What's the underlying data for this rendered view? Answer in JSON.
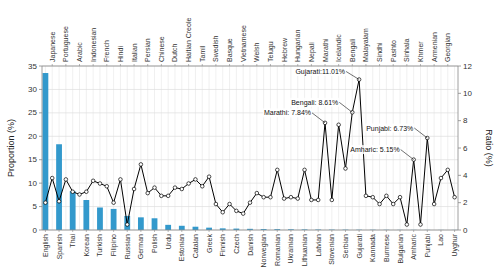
{
  "chart_data": {
    "type": "bar",
    "categories": [
      "English",
      "Japanese",
      "Spanish",
      "Portuguese",
      "Thai",
      "Arabic",
      "Korean",
      "Indonesian",
      "Turkish",
      "French",
      "Filipino",
      "Hindi",
      "Russian",
      "Italian",
      "German",
      "Persian",
      "Polish",
      "Chinese",
      "Urdu",
      "Dutch",
      "Estonian",
      "Haitian Creole",
      "Catalan",
      "Tamil",
      "Greek",
      "Swedish",
      "Finnish",
      "Basque",
      "Czech",
      "Vietnamese",
      "Danish",
      "Welsh",
      "Norwegian",
      "Telugu",
      "Romanian",
      "Hebrew",
      "Ukrainian",
      "Hungarian",
      "Lithuanian",
      "Nepali",
      "Latvian",
      "Marathi",
      "Slovenian",
      "Icelandic",
      "Serbian",
      "Bengali",
      "Gujarati",
      "Malayalam",
      "Kannada",
      "Sindhi",
      "Burmese",
      "Pashto",
      "Bulgarian",
      "Sinhala",
      "Amharic",
      "Khmer",
      "Punjabi",
      "Armenian",
      "Lao",
      "Georgian",
      "Uyghur"
    ],
    "series": [
      {
        "type": "bar",
        "color": "#3399cc",
        "values": [
          33.5,
          0.0,
          18.3,
          0.0,
          8.3,
          0.0,
          6.4,
          0.0,
          4.8,
          0.0,
          4.5,
          0.0,
          3.0,
          0.0,
          2.7,
          0.0,
          2.5,
          0.0,
          1.1,
          0.0,
          0.9,
          0.0,
          0.7,
          0.0,
          0.5,
          0.0,
          0.35,
          0.0,
          0.3,
          0.0,
          0.25,
          0.0,
          0.2,
          0.0,
          0.18,
          0.0,
          0.15,
          0.0,
          0.12,
          0.0,
          0.1,
          0.0,
          0.08,
          0.0,
          0.07,
          0.0,
          0.06,
          0.0,
          0.05,
          0.0,
          0.04,
          0.0,
          0.03,
          0.0,
          0.03,
          0.0,
          0.03,
          0.0,
          0.02,
          0.0,
          0.02
        ]
      },
      {
        "type": "line",
        "axis": "y2",
        "color": "black",
        "marker": "circle",
        "values": [
          2.0,
          3.8,
          2.1,
          3.7,
          2.8,
          2.6,
          2.8,
          3.6,
          3.4,
          3.2,
          2.0,
          3.7,
          0.4,
          3.0,
          4.8,
          2.7,
          3.1,
          2.5,
          2.5,
          3.1,
          3.0,
          3.4,
          3.7,
          3.2,
          3.9,
          1.9,
          1.3,
          1.9,
          1.4,
          1.2,
          2.0,
          2.7,
          2.4,
          2.4,
          4.4,
          2.3,
          2.4,
          2.3,
          4.4,
          2.2,
          2.2,
          7.84,
          2.2,
          7.7,
          4.5,
          8.61,
          11.01,
          2.5,
          2.4,
          1.9,
          2.5,
          1.9,
          2.4,
          0.4,
          5.15,
          0.4,
          6.73,
          1.9,
          3.8,
          4.4,
          2.4
        ]
      }
    ],
    "ylabel": "Proportion (%)",
    "y2label": "Ratio (%)",
    "ylim": [
      0,
      35
    ],
    "yticks": [
      0,
      5,
      10,
      15,
      20,
      25,
      30,
      35
    ],
    "y2lim": [
      0,
      12
    ],
    "y2ticks": [
      0,
      2,
      4,
      6,
      8,
      10,
      12
    ],
    "grid": true,
    "annotations": [
      {
        "text": "Gujarati:11.01%",
        "x": "Gujarati",
        "y": 11.01
      },
      {
        "text": "Bengali: 8.61%",
        "x": "Bengali",
        "y": 8.61
      },
      {
        "text": "Marathi: 7.84%",
        "x": "Marathi",
        "y": 7.84
      },
      {
        "text": "Amharic: 5.15%",
        "x": "Amharic",
        "y": 5.15
      },
      {
        "text": "Punjabi: 6.73%",
        "x": "Punjabi",
        "y": 6.73
      }
    ]
  }
}
